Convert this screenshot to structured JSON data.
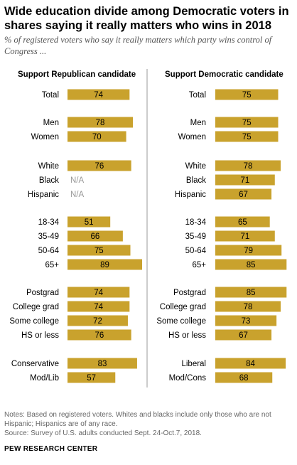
{
  "title": "Wide education divide among Democratic voters in shares saying it really matters who wins in 2018",
  "subtitle": "% of registered voters who say it really matters which party wins control of Congress ...",
  "notes": "Notes: Based on registered voters. Whites and blacks include only those who are not Hispanic; Hispanics are of any race.",
  "source": "Source: Survey of U.S. adults conducted Sept. 24-Oct.7, 2018.",
  "org": "PEW RESEARCH CENTER",
  "colors": {
    "bar": "#c9a22d",
    "missing_text": "#999999",
    "divider": "#999999"
  },
  "chart_data": [
    {
      "type": "bar",
      "title": "Support Republican candidate",
      "categories": [
        "Total",
        "Men",
        "Women",
        "White",
        "Black",
        "Hispanic",
        "18-34",
        "35-49",
        "50-64",
        "65+",
        "Postgrad",
        "College grad",
        "Some college",
        "HS or less",
        "Conservative",
        "Mod/Lib"
      ],
      "values": [
        74,
        78,
        70,
        76,
        null,
        null,
        51,
        66,
        75,
        89,
        74,
        74,
        72,
        76,
        83,
        57
      ],
      "value_labels": [
        "74",
        "78",
        "70",
        "76",
        "N/A",
        "N/A",
        "51",
        "66",
        "75",
        "89",
        "74",
        "74",
        "72",
        "76",
        "83",
        "57"
      ],
      "xlim": [
        0,
        100
      ]
    },
    {
      "type": "bar",
      "title": "Support Democratic candidate",
      "categories": [
        "Total",
        "Men",
        "Women",
        "White",
        "Black",
        "Hispanic",
        "18-34",
        "35-49",
        "50-64",
        "65+",
        "Postgrad",
        "College grad",
        "Some college",
        "HS or less",
        "Liberal",
        "Mod/Cons"
      ],
      "values": [
        75,
        75,
        75,
        78,
        71,
        67,
        65,
        71,
        79,
        85,
        85,
        78,
        73,
        67,
        84,
        68
      ],
      "value_labels": [
        "75",
        "75",
        "75",
        "78",
        "71",
        "67",
        "65",
        "71",
        "79",
        "85",
        "85",
        "78",
        "73",
        "67",
        "84",
        "68"
      ],
      "xlim": [
        0,
        100
      ]
    }
  ]
}
